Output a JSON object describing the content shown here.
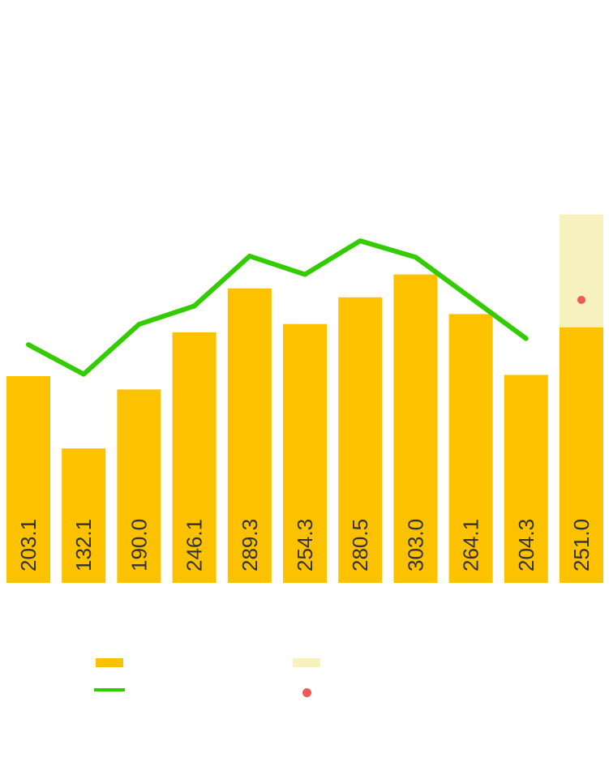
{
  "page": {
    "background_color": "#ffffff",
    "title": ""
  },
  "colors": {
    "bar": "#FCC200",
    "background_bar": "#F7F2BD",
    "line": "#33CC00",
    "point": "#EE5A5A",
    "bar_label_text": "#333333"
  },
  "chart_data": {
    "type": "bar",
    "title": "",
    "xlabel": "",
    "ylabel": "",
    "axes_visible": false,
    "grid": false,
    "legend_position": "bottom",
    "ylim": [
      0,
      362
    ],
    "categories": [
      "",
      "",
      "",
      "",
      "",
      "",
      "",
      "",
      "",
      "",
      ""
    ],
    "series": [
      {
        "name": "",
        "type": "bar",
        "color": "#FCC200",
        "values": [
          203.1,
          132.1,
          190.0,
          246.1,
          289.3,
          254.3,
          280.5,
          303.0,
          264.1,
          204.3,
          251.0
        ],
        "data_labels": [
          "203.1",
          "132.1",
          "190.0",
          "246.1",
          "289.3",
          "254.3",
          "280.5",
          "303.0",
          "264.1",
          "204.3",
          "251.0"
        ],
        "data_label_rotation": -90
      },
      {
        "name": "",
        "type": "bar-background",
        "color": "#F7F2BD",
        "values": [
          null,
          null,
          null,
          null,
          null,
          null,
          null,
          null,
          null,
          null,
          362
        ]
      },
      {
        "name": "",
        "type": "line",
        "color": "#33CC00",
        "values": [
          234,
          205,
          254,
          272,
          321,
          303,
          336,
          320,
          280,
          240,
          null
        ]
      },
      {
        "name": "",
        "type": "scatter",
        "color": "#EE5A5A",
        "values": [
          null,
          null,
          null,
          null,
          null,
          null,
          null,
          null,
          null,
          null,
          278
        ]
      }
    ]
  },
  "legend": {
    "items": [
      {
        "id": "bar-series",
        "swatch": "bar",
        "color": "#FCC200",
        "label": ""
      },
      {
        "id": "background-bar-series",
        "swatch": "bar",
        "color": "#F7F2BD",
        "label": ""
      },
      {
        "id": "line-series",
        "swatch": "line",
        "color": "#33CC00",
        "label": ""
      },
      {
        "id": "point-series",
        "swatch": "dot",
        "color": "#EE5A5A",
        "label": ""
      }
    ]
  }
}
